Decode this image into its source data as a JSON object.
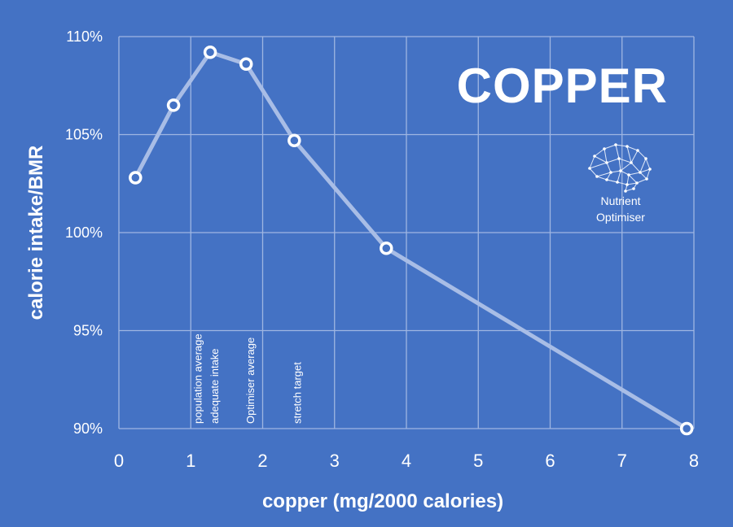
{
  "chart_data": {
    "type": "line",
    "title": "COPPER",
    "xlabel": "copper (mg/2000 calories)",
    "ylabel": "calorie intake/BMR",
    "xlim": [
      0,
      8
    ],
    "ylim": [
      90,
      110
    ],
    "x_ticks": [
      "0",
      "1",
      "2",
      "3",
      "4",
      "5",
      "6",
      "7",
      "8"
    ],
    "y_ticks": [
      "110%",
      "105%",
      "100%",
      "95%",
      "90%"
    ],
    "grid": true,
    "series": [
      {
        "x": [
          0.23,
          0.76,
          1.27,
          1.77,
          2.44,
          3.72,
          7.9
        ],
        "y": [
          102.8,
          106.5,
          109.2,
          108.6,
          104.7,
          99.2,
          90.0
        ],
        "color": "#a8bde6",
        "marker_color": "#ffffff"
      }
    ],
    "annotations": [
      {
        "text": "population average",
        "x": 1.15
      },
      {
        "text": "adequate intake",
        "x": 1.38
      },
      {
        "text": "Optimiser average",
        "x": 1.88
      },
      {
        "text": "stretch target",
        "x": 2.53
      }
    ]
  },
  "branding": {
    "logo_icon": "brain-network-icon",
    "line1": "Nutrient",
    "line2": "Optimiser"
  },
  "colors": {
    "background": "#4472c4",
    "grid": "#9fb6e2",
    "text": "#ffffff"
  }
}
